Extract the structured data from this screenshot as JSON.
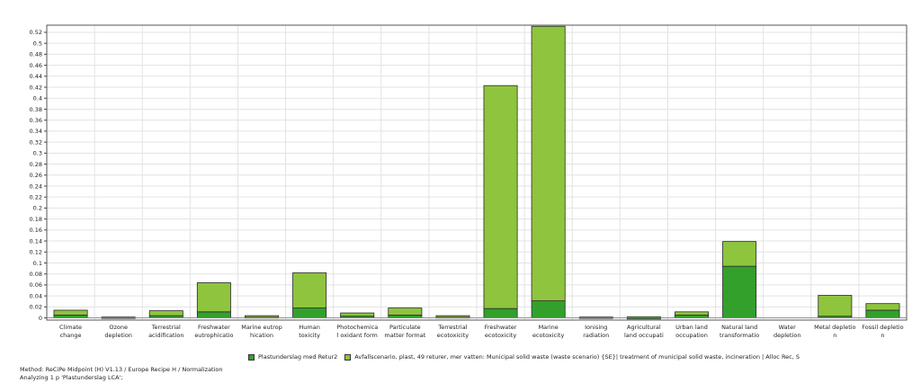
{
  "chart_data": {
    "type": "bar",
    "stacked": true,
    "categories": [
      [
        "Climate",
        "change"
      ],
      [
        "Ozone",
        "depletion"
      ],
      [
        "Terrestrial",
        "acidification"
      ],
      [
        "Freshwater",
        "eutrophicatio"
      ],
      [
        "Marine eutrop",
        "hication"
      ],
      [
        "Human",
        "toxicity"
      ],
      [
        "Photochemica",
        "l oxidant form"
      ],
      [
        "Particulate",
        "matter format"
      ],
      [
        "Terrestrial",
        "ecotoxicity"
      ],
      [
        "Freshwater",
        "ecotoxicity"
      ],
      [
        "Marine",
        "ecotoxicity"
      ],
      [
        "Ionising",
        "radiation"
      ],
      [
        "Agricultural",
        "land occupati"
      ],
      [
        "Urban land",
        "occupation"
      ],
      [
        "Natural land",
        "transformatio"
      ],
      [
        "Water",
        "depletion"
      ],
      [
        "Metal depletio",
        "n"
      ],
      [
        "Fossil depletio",
        "n"
      ]
    ],
    "series": [
      {
        "name": "Plastunderslag med Retur2",
        "color": "#33a02c",
        "values": [
          0.005,
          0.0003,
          0.004,
          0.011,
          0.001,
          0.018,
          0.003,
          0.005,
          0.001,
          0.017,
          0.031,
          0.0003,
          -0.002,
          0.005,
          0.094,
          0.0,
          0.003,
          0.014
        ]
      },
      {
        "name": "Avfallscenario, plast, 49 returer, mer vatten: Municipal solid waste (waste scenario) {SE}| treatment of municipal solid waste, incineration | Alloc Rec, S",
        "color": "#8fc43e",
        "values": [
          0.009,
          0.0012,
          0.009,
          0.053,
          0.003,
          0.064,
          0.006,
          0.013,
          0.003,
          0.406,
          0.5,
          0.0012,
          0.002,
          0.006,
          0.045,
          0.0,
          0.038,
          0.012
        ]
      }
    ],
    "yticks": [
      "0",
      "0.02",
      "0.04",
      "0.06",
      "0.08",
      "0.1",
      "0.12",
      "0.14",
      "0.16",
      "0.18",
      "0.2",
      "0.22",
      "0.24",
      "0.26",
      "0.28",
      "0.3",
      "0.32",
      "0.34",
      "0.36",
      "0.38",
      "0.4",
      "0.42",
      "0.44",
      "0.46",
      "0.48",
      "0.5",
      "0.52"
    ],
    "ylim": [
      -0.004,
      0.533
    ],
    "grid": true,
    "legend_position": "bottom"
  },
  "footer": {
    "method": "Method: ReCiPe Midpoint (H) V1.13 / Europe Recipe H / Normalization",
    "analyzing": "Analyzing 1 p 'Plastunderslag LCA';"
  }
}
